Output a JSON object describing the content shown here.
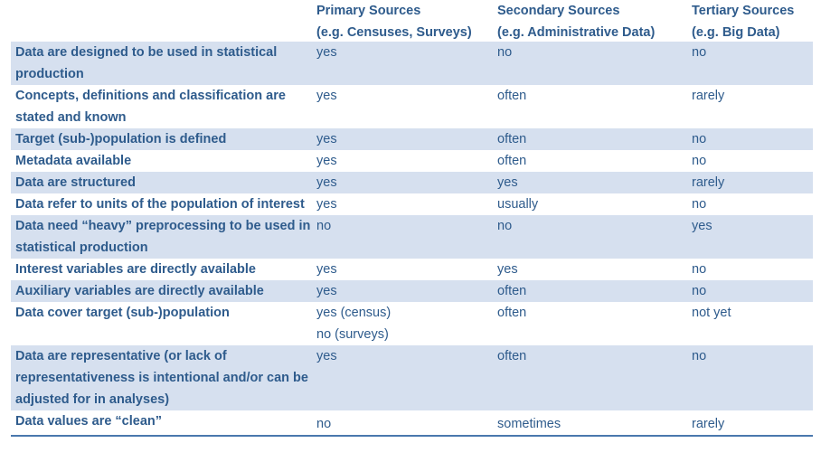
{
  "headers": {
    "primary_l1": "Primary Sources",
    "primary_l2": "(e.g. Censuses, Surveys)",
    "secondary_l1": "Secondary Sources",
    "secondary_l2": "(e.g. Administrative Data)",
    "tertiary_l1": "Tertiary Sources",
    "tertiary_l2": "(e.g. Big Data)"
  },
  "rows": [
    {
      "label": "Data are designed to be used in statistical production",
      "primary": "yes",
      "secondary": "no",
      "tertiary": "no"
    },
    {
      "label": "Concepts, definitions and classification are stated and known",
      "primary": "yes",
      "secondary": "often",
      "tertiary": "rarely"
    },
    {
      "label": "Target (sub-)population is defined",
      "primary": "yes",
      "secondary": "often",
      "tertiary": "no"
    },
    {
      "label": "Metadata available",
      "primary": "yes",
      "secondary": "often",
      "tertiary": "no"
    },
    {
      "label": "Data are structured",
      "primary": "yes",
      "secondary": "yes",
      "tertiary": "rarely"
    },
    {
      "label": "Data refer to units of the population of interest",
      "primary": "yes",
      "secondary": "usually",
      "tertiary": "no"
    },
    {
      "label": "Data need “heavy” preprocessing to be used in statistical production",
      "primary": "no",
      "secondary": "no",
      "tertiary": "yes"
    },
    {
      "label": "Interest variables are directly available",
      "primary": "yes",
      "secondary": "yes",
      "tertiary": "no"
    },
    {
      "label": "Auxiliary variables are directly available",
      "primary": "yes",
      "secondary": "often",
      "tertiary": "no"
    },
    {
      "label": "Data cover target (sub-)population",
      "primary": "yes (census)",
      "primary_2": "no (surveys)",
      "secondary": "often",
      "tertiary": "not yet"
    },
    {
      "label": "Data are representative (or lack of representativeness is intentional and/or can be adjusted for in analyses)",
      "primary": "yes",
      "secondary": "often",
      "tertiary": "no"
    },
    {
      "label": "Data values are “clean”",
      "primary": "no",
      "secondary": "sometimes",
      "tertiary": "rarely"
    }
  ],
  "colors": {
    "text": "#2e5b8c",
    "shade": "#d6e0ef",
    "rule": "#4a78ad"
  }
}
